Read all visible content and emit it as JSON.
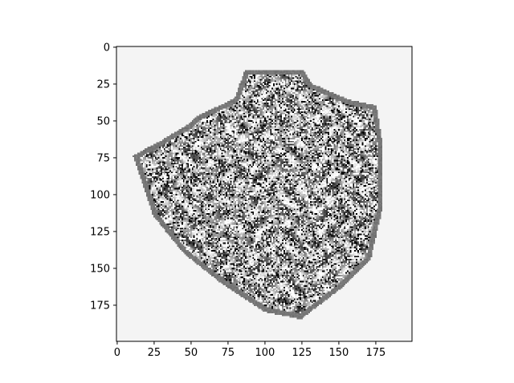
{
  "chart_data": {
    "type": "heatmap",
    "title": "",
    "xlabel": "",
    "ylabel": "",
    "xlim": [
      0,
      200
    ],
    "ylim": [
      200,
      0
    ],
    "x_ticks": [
      0,
      25,
      50,
      75,
      100,
      125,
      150,
      175
    ],
    "y_ticks": [
      0,
      25,
      50,
      75,
      100,
      125,
      150,
      175
    ],
    "x_tick_labels": [
      "0",
      "25",
      "50",
      "75",
      "100",
      "125",
      "150",
      "175"
    ],
    "y_tick_labels": [
      "0",
      "25",
      "50",
      "75",
      "100",
      "125",
      "150",
      "175"
    ],
    "image_size": [
      200,
      200
    ],
    "colormap": "gray",
    "background_value_color": "#f4f4f4",
    "region_outline": [
      [
        11,
        74
      ],
      [
        28,
        65
      ],
      [
        50,
        52
      ],
      [
        55,
        47
      ],
      [
        80,
        35
      ],
      [
        87,
        16
      ],
      [
        127,
        16
      ],
      [
        132,
        25
      ],
      [
        157,
        36
      ],
      [
        176,
        40
      ],
      [
        180,
        65
      ],
      [
        180,
        110
      ],
      [
        172,
        145
      ],
      [
        151,
        165
      ],
      [
        125,
        185
      ],
      [
        100,
        180
      ],
      [
        70,
        160
      ],
      [
        45,
        140
      ],
      [
        25,
        115
      ]
    ],
    "rim_width": 3.5,
    "rim_color": "#777777",
    "texture_colors": [
      "#ffffff",
      "#000000",
      "#606060",
      "#a0a0a0",
      "#d8d8d8"
    ],
    "grid": false,
    "legend": "none"
  }
}
